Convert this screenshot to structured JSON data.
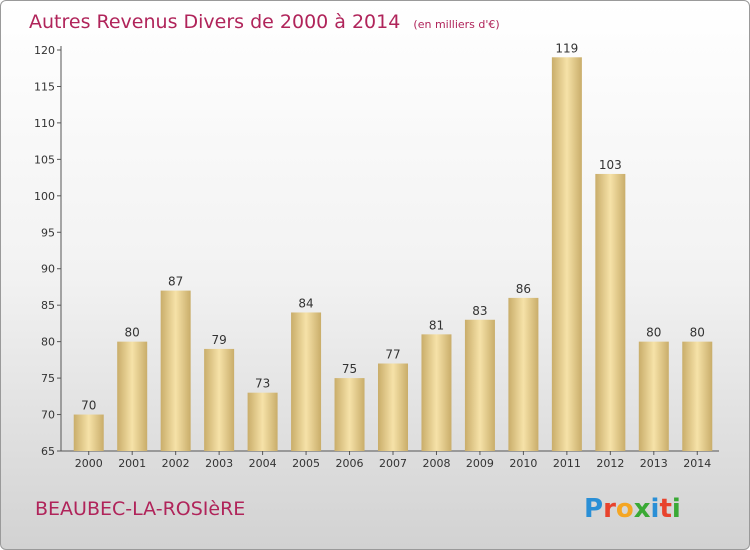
{
  "title": "Autres Revenus Divers de 2000 à 2014",
  "subtitle": "(en milliers d'€)",
  "town": "BEAUBEC-LA-ROSIèRE",
  "logo": {
    "text": "Proxiti",
    "colors": [
      "#2a8fd6",
      "#e8432d",
      "#f5a623",
      "#3aa935",
      "#2a8fd6",
      "#e8432d",
      "#3aa935"
    ]
  },
  "colors": {
    "bar_light": "#f6e2a8",
    "bar_dark": "#c9ad6a",
    "title": "#b0245a"
  },
  "chart_data": {
    "type": "bar",
    "categories": [
      "2000",
      "2001",
      "2002",
      "2003",
      "2004",
      "2005",
      "2006",
      "2007",
      "2008",
      "2009",
      "2010",
      "2011",
      "2012",
      "2013",
      "2014"
    ],
    "values": [
      70,
      80,
      87,
      79,
      73,
      84,
      75,
      77,
      81,
      83,
      86,
      119,
      103,
      80,
      80
    ],
    "ylim": [
      65,
      120
    ],
    "yticks": [
      65,
      70,
      75,
      80,
      85,
      90,
      95,
      100,
      105,
      110,
      115,
      120
    ],
    "grid": false,
    "legend": "none"
  }
}
